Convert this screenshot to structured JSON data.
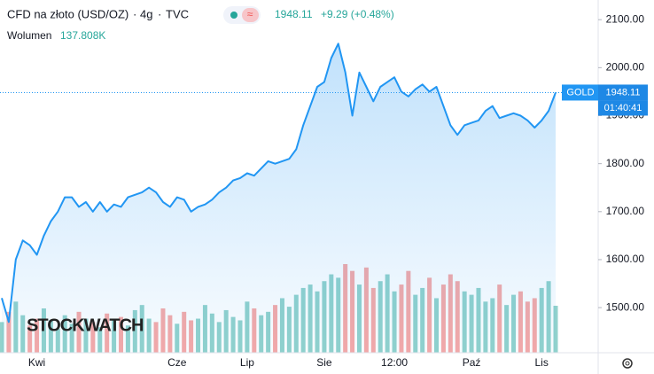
{
  "header": {
    "title": "CFD na złoto (USD/OZ)",
    "interval": "4g",
    "source": "TVC",
    "last": "1948.11",
    "change": "+9.29 (+0.48%)",
    "volume_title": "Wolumen",
    "volume": "137.808K",
    "symbol": "GOLD",
    "countdown": "01:40:41",
    "watermark": "STOCKWATCH"
  },
  "chart_data": {
    "type": "area",
    "x": [
      null,
      null,
      null,
      null,
      null,
      "Kwi",
      null,
      null,
      null,
      null,
      null,
      null,
      null,
      null,
      null,
      null,
      null,
      null,
      null,
      null,
      null,
      null,
      null,
      null,
      null,
      "Cze",
      null,
      null,
      null,
      null,
      null,
      null,
      null,
      null,
      null,
      "Lip",
      null,
      null,
      null,
      null,
      null,
      null,
      null,
      null,
      null,
      null,
      "Sie",
      null,
      null,
      null,
      null,
      null,
      null,
      null,
      null,
      null,
      "12:00",
      null,
      null,
      null,
      null,
      null,
      null,
      null,
      null,
      null,
      null,
      "Paź",
      null,
      null,
      null,
      null,
      null,
      null,
      null,
      null,
      null,
      "Lis",
      null,
      null
    ],
    "series": [
      {
        "name": "CFD na złoto (USD/OZ)",
        "color": "#2196f3",
        "values": [
          1520,
          1470,
          1600,
          1640,
          1630,
          1610,
          1650,
          1680,
          1700,
          1730,
          1730,
          1710,
          1720,
          1700,
          1720,
          1700,
          1715,
          1710,
          1730,
          1735,
          1740,
          1750,
          1740,
          1720,
          1710,
          1730,
          1725,
          1700,
          1710,
          1715,
          1725,
          1740,
          1750,
          1765,
          1770,
          1780,
          1775,
          1790,
          1805,
          1800,
          1805,
          1810,
          1830,
          1880,
          1920,
          1960,
          1970,
          2020,
          2050,
          1990,
          1900,
          1990,
          1960,
          1930,
          1960,
          1970,
          1980,
          1950,
          1940,
          1955,
          1965,
          1950,
          1960,
          1920,
          1880,
          1860,
          1880,
          1885,
          1890,
          1910,
          1920,
          1895,
          1900,
          1905,
          1900,
          1890,
          1875,
          1890,
          1910,
          1948.11
        ]
      },
      {
        "name": "Wolumen",
        "up_color": "#26a69a",
        "down_color": "#ef5350",
        "values": [
          90,
          120,
          150,
          110,
          80,
          100,
          130,
          95,
          70,
          110,
          85,
          120,
          100,
          90,
          75,
          115,
          95,
          105,
          80,
          125,
          140,
          100,
          90,
          130,
          110,
          85,
          120,
          95,
          100,
          140,
          115,
          90,
          125,
          105,
          95,
          150,
          130,
          110,
          120,
          140,
          160,
          135,
          170,
          190,
          200,
          180,
          210,
          230,
          220,
          260,
          240,
          200,
          250,
          190,
          210,
          230,
          180,
          200,
          240,
          170,
          190,
          220,
          160,
          200,
          230,
          210,
          180,
          170,
          190,
          150,
          160,
          200,
          140,
          170,
          180,
          150,
          160,
          190,
          210,
          137.808
        ]
      }
    ],
    "ylim": [
      1406,
      2141
    ],
    "yticks": [
      {
        "value": 1500,
        "label": "1500.00"
      },
      {
        "value": 1600,
        "label": "1600.00"
      },
      {
        "value": 1700,
        "label": "1700.00"
      },
      {
        "value": 1800,
        "label": "1800.00"
      },
      {
        "value": 1900,
        "label": "1900.00"
      },
      {
        "value": 2000,
        "label": "2000.00"
      },
      {
        "value": 2100,
        "label": "2100.00"
      }
    ]
  }
}
